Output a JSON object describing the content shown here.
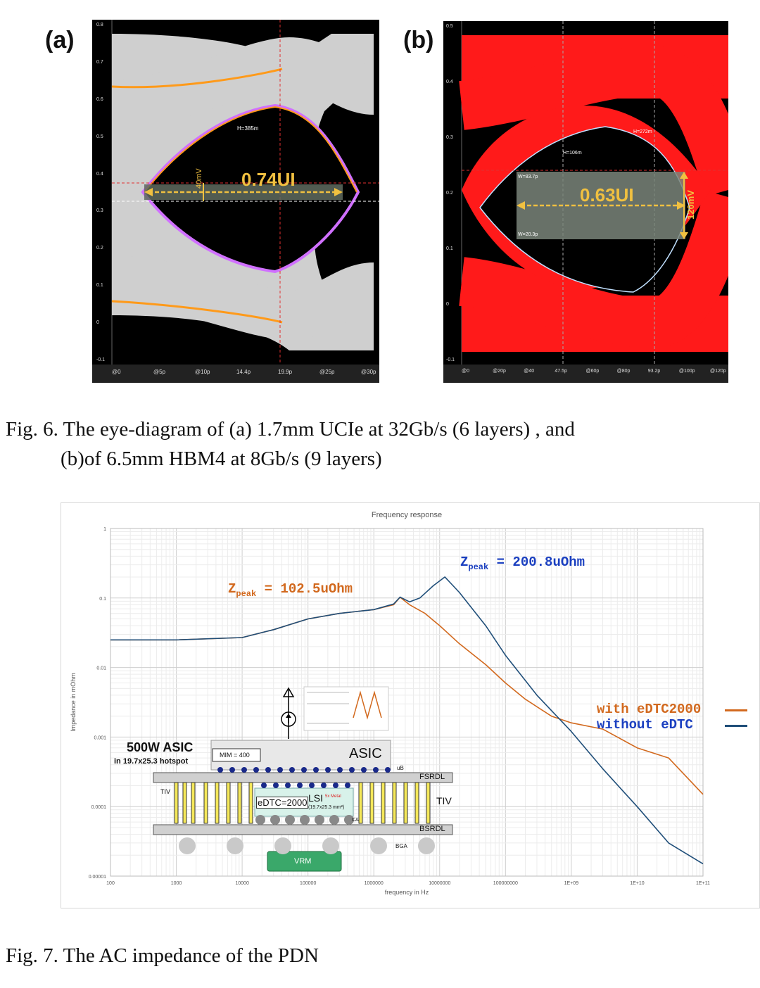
{
  "fig6": {
    "panel_a": {
      "label": "(a)",
      "measure_ui": "0.74UI",
      "measure_mv": "40mV",
      "annot_h": "H=385m",
      "yticks": [
        "0.8",
        "0.7",
        "0.6",
        "0.5",
        "0.4",
        "0.3",
        "0.2",
        "0.1",
        "0",
        "-0.1"
      ],
      "xticks": [
        "@0",
        "@5p",
        "@10p",
        "14.4p",
        "19.9p",
        "@25p",
        "@30p"
      ]
    },
    "panel_b": {
      "label": "(b)",
      "measure_ui": "0.63UI",
      "measure_mv": "120mV",
      "annot_h1": "H=272m",
      "annot_h2": "H=106m",
      "annot_w1": "W=83.7p",
      "annot_w2": "W=20.3p",
      "yticks": [
        "0.5",
        "0.4",
        "0.3",
        "0.2",
        "0.1",
        "0",
        "-0.1"
      ],
      "xticks": [
        "@0",
        "@20p",
        "@40",
        "47.5p",
        "@60p",
        "@80p",
        "93.2p",
        "@100p",
        "@120p"
      ]
    },
    "caption_line1": "Fig. 6.   The eye-diagram of (a) 1.7mm UCIe at 32Gb/s (6 layers) , and",
    "caption_line2": "(b)of 6.5mm HBM4 at 8Gb/s (9 layers)"
  },
  "fig7": {
    "caption": "Fig. 7.   The AC impedance of the PDN",
    "zpeak_with": "= 102.5uOhm",
    "zpeak_without": "= 200.8uOhm",
    "zpeak_symbol": "Z",
    "zpeak_sub": "peak",
    "inset": {
      "title": "500W ASIC",
      "subtitle": "in 19.7x25.3 hotspot",
      "mim": "MIM = 400",
      "asic": "ASIC",
      "ub": "uB",
      "fsrdl": "FSRDL",
      "tiv_left": "TIV",
      "tiv_right": "TIV",
      "edtc": "eDTC=2000",
      "lsi": "LSI",
      "metal": "5x Metal",
      "lsi_size": "(19.7x25.3 mm²)",
      "bsrdl": "BSRDL",
      "bga": "BGA",
      "vrm": "VRM",
      "ca": "CA"
    }
  },
  "chart_data": {
    "type": "line",
    "title": "Frequency response",
    "xlabel": "frequency in Hz",
    "ylabel": "Impedance in mOhm",
    "x_scale": "log",
    "y_scale": "log",
    "xlim": [
      100,
      100000000000.0
    ],
    "ylim": [
      1e-05,
      1
    ],
    "xticks": [
      "100",
      "1000",
      "10000",
      "100000",
      "1000000",
      "10000000",
      "100000000",
      "1E+09",
      "1E+10",
      "1E+11"
    ],
    "yticks": [
      "1",
      "0.1",
      "0.01",
      "0.001",
      "0.0001",
      "0.00001"
    ],
    "grid": true,
    "legend_position": "right",
    "series": [
      {
        "name": "with eDTC2000",
        "color": "#d2691e",
        "x": [
          100,
          1000,
          10000,
          30000,
          100000,
          300000,
          1000000,
          2000000,
          2500000,
          3500000,
          6000000,
          10000000,
          20000000,
          50000000,
          100000000,
          200000000,
          500000000,
          1000000000,
          3000000000,
          10000000000,
          30000000000,
          100000000000
        ],
        "y": [
          0.025,
          0.025,
          0.027,
          0.035,
          0.05,
          0.06,
          0.068,
          0.08,
          0.1025,
          0.08,
          0.06,
          0.04,
          0.022,
          0.011,
          0.006,
          0.0035,
          0.002,
          0.0016,
          0.0013,
          0.0007,
          0.0005,
          0.00015
        ]
      },
      {
        "name": "without eDTC",
        "color": "#1f4e79",
        "x": [
          100,
          1000,
          10000,
          30000,
          100000,
          300000,
          1000000,
          2000000,
          2500000,
          3500000,
          5000000,
          8000000,
          12000000,
          20000000,
          50000000,
          100000000,
          300000000,
          1000000000,
          3000000000,
          10000000000,
          30000000000,
          100000000000
        ],
        "y": [
          0.025,
          0.025,
          0.027,
          0.035,
          0.05,
          0.06,
          0.068,
          0.082,
          0.103,
          0.088,
          0.1,
          0.15,
          0.2008,
          0.12,
          0.04,
          0.015,
          0.004,
          0.0012,
          0.00035,
          0.0001,
          3e-05,
          1.5e-05
        ]
      }
    ]
  }
}
